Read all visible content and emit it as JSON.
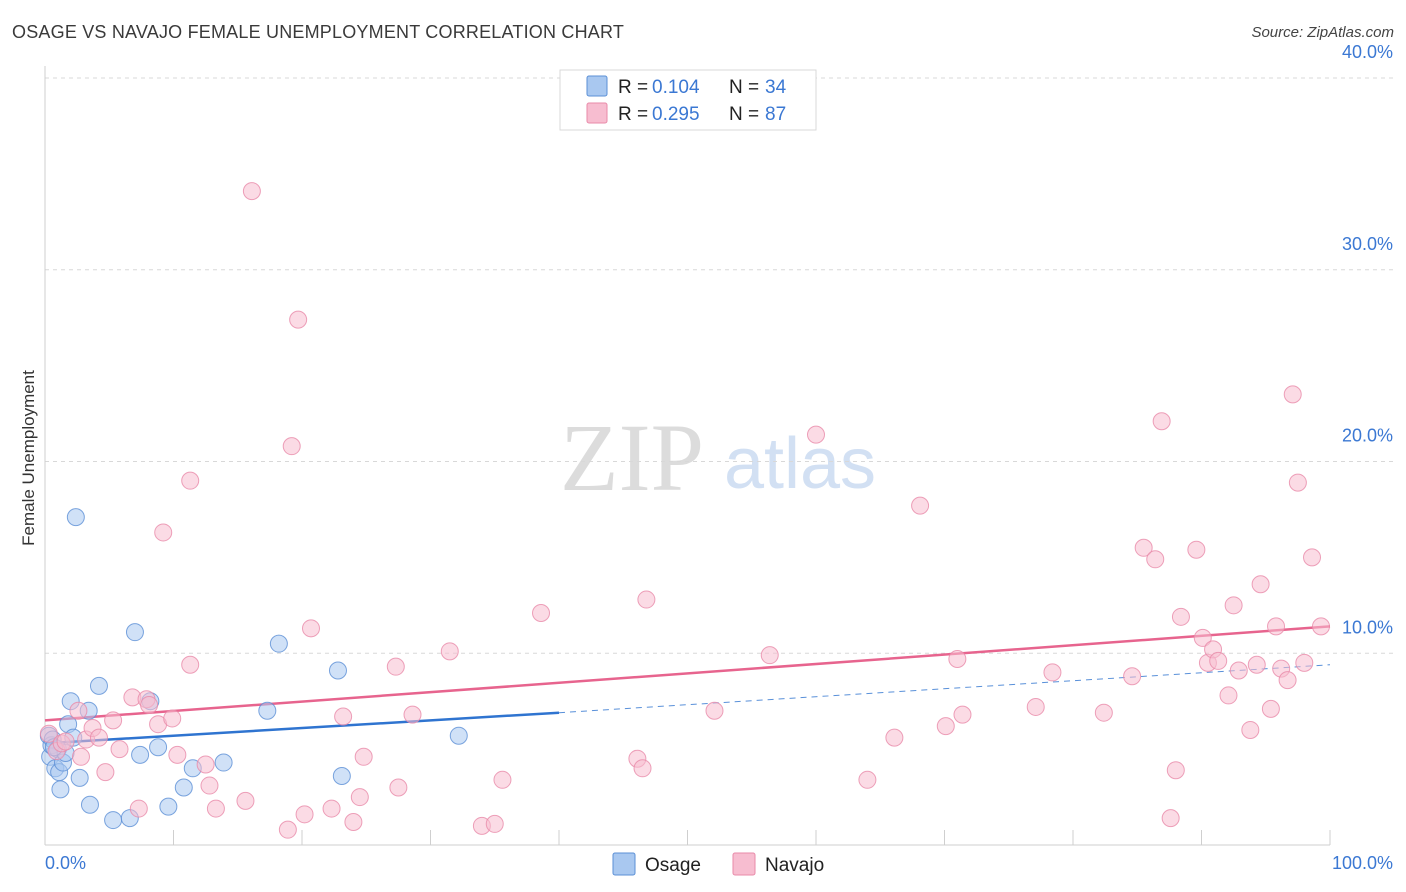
{
  "header": {
    "title": "OSAGE VS NAVAJO FEMALE UNEMPLOYMENT CORRELATION CHART",
    "source": "Source: ZipAtlas.com"
  },
  "watermark": {
    "zip": "ZIP",
    "atlas": "atlas"
  },
  "colors": {
    "osage_fill": "#a9c8f0",
    "osage_stroke": "#5b8fd6",
    "osage_line": "#2f74d0",
    "navajo_fill": "#f7bdd0",
    "navajo_stroke": "#e88aa9",
    "navajo_line": "#e7648e",
    "tick_label": "#3b78d3",
    "grid": "#d8d8d8"
  },
  "stats_box": {
    "rows": [
      {
        "series": "Osage",
        "r_label": "R =",
        "r_value": "0.104",
        "n_label": "N =",
        "n_value": "34"
      },
      {
        "series": "Navajo",
        "r_label": "R =",
        "r_value": "0.295",
        "n_label": "N =",
        "n_value": "87"
      }
    ]
  },
  "chart_data": {
    "type": "scatter",
    "title": "OSAGE VS NAVAJO FEMALE UNEMPLOYMENT CORRELATION CHART",
    "xlabel": "",
    "ylabel": "Female Unemployment",
    "xlim": [
      0,
      100
    ],
    "ylim": [
      0,
      40
    ],
    "x_tick_labels": [
      "0.0%",
      "100.0%"
    ],
    "y_ticks": [
      10,
      20,
      30,
      40
    ],
    "y_tick_labels": [
      "10.0%",
      "20.0%",
      "30.0%",
      "40.0%"
    ],
    "grid": true,
    "legend": [
      "Osage",
      "Navajo"
    ],
    "series": [
      {
        "name": "Osage",
        "r": 0.104,
        "n": 34,
        "trend": {
          "x0": 0,
          "y0": 5.3,
          "x1": 40,
          "y1": 6.9,
          "dashed_to_x": 100,
          "dashed_to_y": 9.4
        },
        "points": [
          [
            0.3,
            5.7
          ],
          [
            0.4,
            4.6
          ],
          [
            0.5,
            5.2
          ],
          [
            0.6,
            5.5
          ],
          [
            0.8,
            4.0
          ],
          [
            1.0,
            5.0
          ],
          [
            1.1,
            3.8
          ],
          [
            1.2,
            2.9
          ],
          [
            1.4,
            4.3
          ],
          [
            1.6,
            4.8
          ],
          [
            1.8,
            6.3
          ],
          [
            2.0,
            7.5
          ],
          [
            2.2,
            5.6
          ],
          [
            2.4,
            17.1
          ],
          [
            2.7,
            3.5
          ],
          [
            3.4,
            7.0
          ],
          [
            3.5,
            2.1
          ],
          [
            4.2,
            8.3
          ],
          [
            5.3,
            1.3
          ],
          [
            6.6,
            1.4
          ],
          [
            7.0,
            11.1
          ],
          [
            7.4,
            4.7
          ],
          [
            8.2,
            7.5
          ],
          [
            8.8,
            5.1
          ],
          [
            9.6,
            2.0
          ],
          [
            10.8,
            3.0
          ],
          [
            11.5,
            4.0
          ],
          [
            13.9,
            4.3
          ],
          [
            17.3,
            7.0
          ],
          [
            18.2,
            10.5
          ],
          [
            22.8,
            9.1
          ],
          [
            23.1,
            3.6
          ],
          [
            32.2,
            5.7
          ],
          [
            0.7,
            5.1
          ]
        ]
      },
      {
        "name": "Navajo",
        "r": 0.295,
        "n": 87,
        "trend": {
          "x0": 0,
          "y0": 6.5,
          "x1": 100,
          "y1": 11.4
        },
        "points": [
          [
            0.3,
            5.8
          ],
          [
            0.9,
            4.9
          ],
          [
            1.3,
            5.3
          ],
          [
            1.6,
            5.4
          ],
          [
            2.6,
            7.0
          ],
          [
            2.8,
            4.6
          ],
          [
            3.2,
            5.5
          ],
          [
            3.7,
            6.1
          ],
          [
            4.2,
            5.6
          ],
          [
            4.7,
            3.8
          ],
          [
            5.3,
            6.5
          ],
          [
            5.8,
            5.0
          ],
          [
            6.8,
            7.7
          ],
          [
            7.3,
            1.9
          ],
          [
            7.9,
            7.6
          ],
          [
            8.1,
            7.3
          ],
          [
            8.8,
            6.3
          ],
          [
            9.9,
            6.6
          ],
          [
            10.3,
            4.7
          ],
          [
            9.2,
            16.3
          ],
          [
            11.3,
            19.0
          ],
          [
            11.3,
            9.4
          ],
          [
            12.5,
            4.2
          ],
          [
            12.8,
            3.1
          ],
          [
            13.3,
            1.9
          ],
          [
            15.6,
            2.3
          ],
          [
            16.1,
            34.1
          ],
          [
            18.9,
            0.8
          ],
          [
            19.2,
            20.8
          ],
          [
            19.7,
            27.4
          ],
          [
            20.2,
            1.6
          ],
          [
            20.7,
            11.3
          ],
          [
            22.3,
            1.9
          ],
          [
            23.2,
            6.7
          ],
          [
            24.0,
            1.2
          ],
          [
            24.5,
            2.5
          ],
          [
            24.8,
            4.6
          ],
          [
            27.3,
            9.3
          ],
          [
            27.5,
            3.0
          ],
          [
            28.6,
            6.8
          ],
          [
            31.5,
            10.1
          ],
          [
            34.0,
            1.0
          ],
          [
            35.0,
            1.1
          ],
          [
            35.6,
            3.4
          ],
          [
            38.6,
            12.1
          ],
          [
            46.1,
            4.5
          ],
          [
            46.5,
            4.0
          ],
          [
            46.8,
            12.8
          ],
          [
            52.1,
            7.0
          ],
          [
            56.4,
            9.9
          ],
          [
            60.0,
            21.4
          ],
          [
            64.0,
            3.4
          ],
          [
            66.1,
            5.6
          ],
          [
            68.1,
            17.7
          ],
          [
            70.1,
            6.2
          ],
          [
            71.0,
            9.7
          ],
          [
            71.4,
            6.8
          ],
          [
            77.1,
            7.2
          ],
          [
            78.4,
            9.0
          ],
          [
            82.4,
            6.9
          ],
          [
            84.6,
            8.8
          ],
          [
            85.5,
            15.5
          ],
          [
            86.4,
            14.9
          ],
          [
            86.9,
            22.1
          ],
          [
            87.6,
            1.4
          ],
          [
            88.0,
            3.9
          ],
          [
            88.4,
            11.9
          ],
          [
            89.6,
            15.4
          ],
          [
            90.1,
            10.8
          ],
          [
            90.5,
            9.5
          ],
          [
            90.9,
            10.2
          ],
          [
            91.3,
            9.6
          ],
          [
            92.1,
            7.8
          ],
          [
            92.5,
            12.5
          ],
          [
            92.9,
            9.1
          ],
          [
            93.8,
            6.0
          ],
          [
            94.3,
            9.4
          ],
          [
            94.6,
            13.6
          ],
          [
            95.4,
            7.1
          ],
          [
            95.8,
            11.4
          ],
          [
            96.2,
            9.2
          ],
          [
            96.7,
            8.6
          ],
          [
            97.1,
            23.5
          ],
          [
            97.5,
            18.9
          ],
          [
            98.0,
            9.5
          ],
          [
            98.6,
            15.0
          ],
          [
            99.3,
            11.4
          ]
        ]
      }
    ]
  }
}
